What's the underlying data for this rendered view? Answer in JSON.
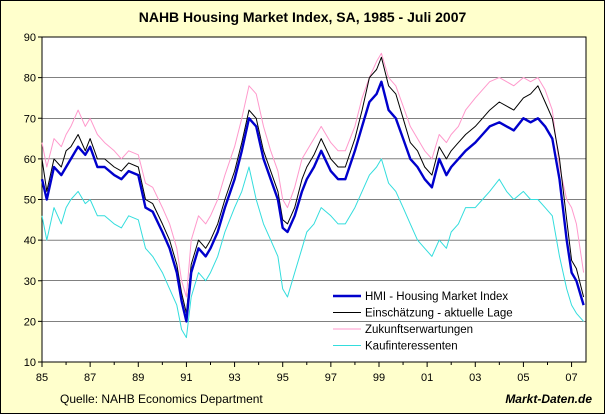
{
  "chart_data": {
    "type": "line",
    "title": "NAHB Housing Market Index, SA, 1985 - Juli 2007",
    "source": "Quelle: NAHB Economics Department",
    "brand": "Markt-Daten.de",
    "xlim": [
      1985,
      2007.6
    ],
    "ylim": [
      10,
      90
    ],
    "x_ticks": [
      "85",
      "87",
      "89",
      "91",
      "93",
      "95",
      "97",
      "99",
      "01",
      "03",
      "05",
      "07"
    ],
    "x_tick_positions": [
      1985,
      1987,
      1989,
      1991,
      1993,
      1995,
      1997,
      1999,
      2001,
      2003,
      2005,
      2007
    ],
    "y_ticks": [
      10,
      20,
      30,
      40,
      50,
      60,
      70,
      80,
      90
    ],
    "grid": "horizontal",
    "legend_position": "bottom-right",
    "series": [
      {
        "name": "HMI - Housing Market Index",
        "color": "#0000cc",
        "x": [
          1985,
          1985.2,
          1985.5,
          1985.8,
          1986,
          1986.2,
          1986.5,
          1986.8,
          1987,
          1987.3,
          1987.6,
          1988,
          1988.3,
          1988.6,
          1989,
          1989.3,
          1989.6,
          1990,
          1990.3,
          1990.6,
          1990.8,
          1991,
          1991.2,
          1991.5,
          1991.8,
          1992,
          1992.3,
          1992.6,
          1993,
          1993.3,
          1993.6,
          1993.9,
          1994.2,
          1994.5,
          1994.8,
          1995,
          1995.2,
          1995.5,
          1995.8,
          1996,
          1996.3,
          1996.6,
          1997,
          1997.3,
          1997.6,
          1998,
          1998.3,
          1998.6,
          1998.9,
          1999.1,
          1999.4,
          1999.7,
          2000,
          2000.3,
          2000.6,
          2000.9,
          2001.2,
          2001.5,
          2001.8,
          2002,
          2002.3,
          2002.6,
          2003,
          2003.3,
          2003.6,
          2004,
          2004.3,
          2004.6,
          2005,
          2005.3,
          2005.6,
          2005.9,
          2006.2,
          2006.5,
          2006.8,
          2007,
          2007.2,
          2007.5
        ],
        "y": [
          55,
          50,
          58,
          56,
          58,
          60,
          63,
          61,
          63,
          58,
          58,
          56,
          55,
          57,
          56,
          48,
          47,
          42,
          38,
          32,
          25,
          20,
          32,
          38,
          36,
          38,
          42,
          48,
          55,
          62,
          70,
          68,
          60,
          55,
          50,
          43,
          42,
          46,
          52,
          55,
          58,
          62,
          57,
          55,
          55,
          62,
          68,
          74,
          76,
          79,
          72,
          70,
          65,
          60,
          58,
          55,
          53,
          60,
          56,
          58,
          60,
          62,
          64,
          66,
          68,
          69,
          68,
          67,
          70,
          69,
          70,
          68,
          65,
          55,
          40,
          32,
          30,
          24
        ]
      },
      {
        "name": "Einschätzung - aktuelle Lage",
        "color": "#000000",
        "x": [
          1985,
          1985.2,
          1985.5,
          1985.8,
          1986,
          1986.2,
          1986.5,
          1986.8,
          1987,
          1987.3,
          1987.6,
          1988,
          1988.3,
          1988.6,
          1989,
          1989.3,
          1989.6,
          1990,
          1990.3,
          1990.6,
          1990.8,
          1991,
          1991.2,
          1991.5,
          1991.8,
          1992,
          1992.3,
          1992.6,
          1993,
          1993.3,
          1993.6,
          1993.9,
          1994.2,
          1994.5,
          1994.8,
          1995,
          1995.2,
          1995.5,
          1995.8,
          1996,
          1996.3,
          1996.6,
          1997,
          1997.3,
          1997.6,
          1998,
          1998.3,
          1998.6,
          1998.9,
          1999.1,
          1999.4,
          1999.7,
          2000,
          2000.3,
          2000.6,
          2000.9,
          2001.2,
          2001.5,
          2001.8,
          2002,
          2002.3,
          2002.6,
          2003,
          2003.3,
          2003.6,
          2004,
          2004.3,
          2004.6,
          2005,
          2005.3,
          2005.6,
          2005.9,
          2006.2,
          2006.5,
          2006.8,
          2007,
          2007.2,
          2007.5
        ],
        "y": [
          60,
          52,
          60,
          58,
          62,
          63,
          66,
          62,
          65,
          60,
          60,
          58,
          57,
          59,
          58,
          50,
          49,
          44,
          40,
          34,
          27,
          22,
          34,
          40,
          38,
          40,
          44,
          50,
          57,
          64,
          72,
          70,
          62,
          57,
          52,
          45,
          44,
          48,
          55,
          58,
          61,
          65,
          60,
          58,
          58,
          65,
          72,
          80,
          82,
          85,
          78,
          76,
          70,
          64,
          62,
          58,
          56,
          63,
          60,
          62,
          64,
          66,
          68,
          70,
          72,
          74,
          73,
          72,
          75,
          76,
          78,
          74,
          70,
          60,
          45,
          35,
          33,
          26
        ]
      },
      {
        "name": "Zukunftserwartungen",
        "color": "#ff99cc",
        "x": [
          1985,
          1985.2,
          1985.5,
          1985.8,
          1986,
          1986.2,
          1986.5,
          1986.8,
          1987,
          1987.3,
          1987.6,
          1988,
          1988.3,
          1988.6,
          1989,
          1989.3,
          1989.6,
          1990,
          1990.3,
          1990.6,
          1990.8,
          1991,
          1991.2,
          1991.5,
          1991.8,
          1992,
          1992.3,
          1992.6,
          1993,
          1993.3,
          1993.6,
          1993.9,
          1994.2,
          1994.5,
          1994.8,
          1995,
          1995.2,
          1995.5,
          1995.8,
          1996,
          1996.3,
          1996.6,
          1997,
          1997.3,
          1997.6,
          1998,
          1998.3,
          1998.6,
          1998.9,
          1999.1,
          1999.4,
          1999.7,
          2000,
          2000.3,
          2000.6,
          2000.9,
          2001.2,
          2001.5,
          2001.8,
          2002,
          2002.3,
          2002.6,
          2003,
          2003.3,
          2003.6,
          2004,
          2004.3,
          2004.6,
          2005,
          2005.3,
          2005.6,
          2005.9,
          2006.2,
          2006.5,
          2006.8,
          2007,
          2007.2,
          2007.5
        ],
        "y": [
          64,
          58,
          65,
          63,
          66,
          68,
          72,
          68,
          70,
          66,
          64,
          62,
          60,
          62,
          61,
          54,
          53,
          48,
          44,
          38,
          30,
          26,
          40,
          46,
          44,
          46,
          50,
          56,
          63,
          70,
          78,
          76,
          68,
          62,
          57,
          50,
          48,
          53,
          60,
          62,
          65,
          68,
          64,
          62,
          62,
          68,
          75,
          80,
          84,
          86,
          80,
          78,
          73,
          68,
          65,
          62,
          60,
          66,
          64,
          66,
          68,
          72,
          75,
          77,
          79,
          80,
          79,
          78,
          80,
          79,
          80,
          77,
          72,
          58,
          50,
          48,
          44,
          32
        ]
      },
      {
        "name": "Kaufinteressenten",
        "color": "#33dddd",
        "x": [
          1985,
          1985.2,
          1985.5,
          1985.8,
          1986,
          1986.2,
          1986.5,
          1986.8,
          1987,
          1987.3,
          1987.6,
          1988,
          1988.3,
          1988.6,
          1989,
          1989.3,
          1989.6,
          1990,
          1990.3,
          1990.6,
          1990.8,
          1991,
          1991.2,
          1991.5,
          1991.8,
          1992,
          1992.3,
          1992.6,
          1993,
          1993.3,
          1993.6,
          1993.9,
          1994.2,
          1994.5,
          1994.8,
          1995,
          1995.2,
          1995.5,
          1995.8,
          1996,
          1996.3,
          1996.6,
          1997,
          1997.3,
          1997.6,
          1998,
          1998.3,
          1998.6,
          1998.9,
          1999.1,
          1999.4,
          1999.7,
          2000,
          2000.3,
          2000.6,
          2000.9,
          2001.2,
          2001.5,
          2001.8,
          2002,
          2002.3,
          2002.6,
          2003,
          2003.3,
          2003.6,
          2004,
          2004.3,
          2004.6,
          2005,
          2005.3,
          2005.6,
          2005.9,
          2006.2,
          2006.5,
          2006.8,
          2007,
          2007.2,
          2007.5
        ],
        "y": [
          46,
          40,
          48,
          44,
          48,
          50,
          52,
          49,
          50,
          46,
          46,
          44,
          43,
          46,
          45,
          38,
          36,
          32,
          28,
          24,
          18,
          16,
          26,
          32,
          30,
          32,
          36,
          42,
          48,
          52,
          58,
          50,
          44,
          40,
          36,
          28,
          26,
          32,
          38,
          42,
          44,
          48,
          46,
          44,
          44,
          48,
          52,
          56,
          58,
          60,
          54,
          52,
          48,
          44,
          40,
          38,
          36,
          40,
          38,
          42,
          44,
          48,
          48,
          50,
          52,
          55,
          52,
          50,
          52,
          50,
          50,
          48,
          46,
          36,
          28,
          24,
          22,
          20
        ]
      }
    ]
  }
}
